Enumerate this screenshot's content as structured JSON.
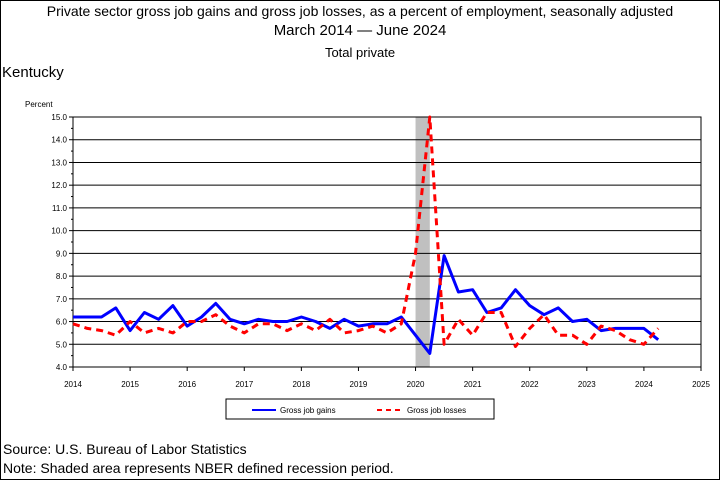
{
  "header": {
    "title": "Private sector gross job gains and gross job losses, as a percent of employment, seasonally adjusted",
    "date_range": "March 2014 — June 2024",
    "subtitle": "Total private",
    "region": "Kentucky"
  },
  "footer": {
    "source": "Source: U.S. Bureau of Labor Statistics",
    "note": "Note: Shaded area represents NBER defined recession period."
  },
  "colors": {
    "gains": "#0000ff",
    "losses": "#ff0000",
    "recession": "#c0c0c0",
    "grid": "#000000"
  },
  "chart_data": {
    "type": "line",
    "ylabel": "Percent",
    "ylim": [
      4.0,
      15.0
    ],
    "xlim": [
      2014,
      2025
    ],
    "y_ticks": [
      "4.0",
      "5.0",
      "6.0",
      "7.0",
      "8.0",
      "9.0",
      "10.0",
      "11.0",
      "12.0",
      "13.0",
      "14.0",
      "15.0"
    ],
    "x_ticks": [
      "2014",
      "2015",
      "2016",
      "2017",
      "2018",
      "2019",
      "2020",
      "2021",
      "2022",
      "2023",
      "2024",
      "2025"
    ],
    "grid": true,
    "legend_position": "bottom",
    "recession": [
      2020.0,
      2020.25
    ],
    "series": [
      {
        "name": "Gross job gains",
        "style": "solid",
        "x": [
          2014.0,
          2014.25,
          2014.5,
          2014.75,
          2015.0,
          2015.25,
          2015.5,
          2015.75,
          2016.0,
          2016.25,
          2016.5,
          2016.75,
          2017.0,
          2017.25,
          2017.5,
          2017.75,
          2018.0,
          2018.25,
          2018.5,
          2018.75,
          2019.0,
          2019.25,
          2019.5,
          2019.75,
          2020.0,
          2020.25,
          2020.5,
          2020.75,
          2021.0,
          2021.25,
          2021.5,
          2021.75,
          2022.0,
          2022.25,
          2022.5,
          2022.75,
          2023.0,
          2023.25,
          2023.5,
          2023.75,
          2024.0,
          2024.25
        ],
        "values": [
          6.2,
          6.2,
          6.2,
          6.6,
          5.6,
          6.4,
          6.1,
          6.7,
          5.8,
          6.2,
          6.8,
          6.1,
          5.9,
          6.1,
          6.0,
          6.0,
          6.2,
          6.0,
          5.7,
          6.1,
          5.8,
          5.9,
          5.9,
          6.2,
          5.4,
          4.6,
          8.9,
          7.3,
          7.4,
          6.4,
          6.6,
          7.4,
          6.7,
          6.3,
          6.6,
          6.0,
          6.1,
          5.6,
          5.7,
          5.7,
          5.7,
          5.2
        ]
      },
      {
        "name": "Gross job losses",
        "style": "dashed",
        "x": [
          2014.0,
          2014.25,
          2014.5,
          2014.75,
          2015.0,
          2015.25,
          2015.5,
          2015.75,
          2016.0,
          2016.25,
          2016.5,
          2016.75,
          2017.0,
          2017.25,
          2017.5,
          2017.75,
          2018.0,
          2018.25,
          2018.5,
          2018.75,
          2019.0,
          2019.25,
          2019.5,
          2019.75,
          2020.0,
          2020.25,
          2020.5,
          2020.75,
          2021.0,
          2021.25,
          2021.5,
          2021.75,
          2022.0,
          2022.25,
          2022.5,
          2022.75,
          2023.0,
          2023.25,
          2023.5,
          2023.75,
          2024.0,
          2024.25
        ],
        "values": [
          5.9,
          5.7,
          5.6,
          5.4,
          6.0,
          5.5,
          5.7,
          5.5,
          6.0,
          6.0,
          6.3,
          5.8,
          5.5,
          5.9,
          5.9,
          5.6,
          5.9,
          5.6,
          6.1,
          5.5,
          5.6,
          5.8,
          5.5,
          5.9,
          9.0,
          15.0,
          5.0,
          6.1,
          5.4,
          6.4,
          6.4,
          4.9,
          5.7,
          6.3,
          5.4,
          5.4,
          5.0,
          5.8,
          5.6,
          5.2,
          5.0,
          5.7
        ]
      }
    ]
  }
}
